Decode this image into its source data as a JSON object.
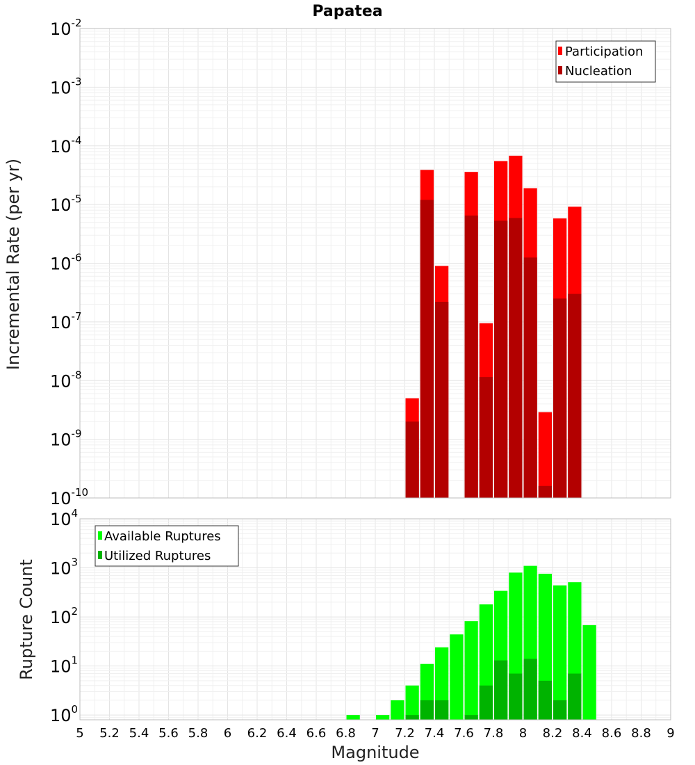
{
  "chart_data": [
    {
      "type": "bar",
      "id": "rates",
      "title": "Papatea",
      "xlabel": "",
      "ylabel": "Incremental Rate (per yr)",
      "yscale": "log",
      "ylim": [
        1e-10,
        0.01
      ],
      "xlim": [
        5,
        9
      ],
      "bar_width": 0.1,
      "y_tick_exponents": [
        -10,
        -9,
        -8,
        -7,
        -6,
        -5,
        -4,
        -3,
        -2
      ],
      "legend_position": "top-right",
      "series": [
        {
          "name": "Participation",
          "color": "#ff0000",
          "points": [
            {
              "x": 7.25,
              "y": 5e-09
            },
            {
              "x": 7.35,
              "y": 3.9e-05
            },
            {
              "x": 7.45,
              "y": 9e-07
            },
            {
              "x": 7.65,
              "y": 3.6e-05
            },
            {
              "x": 7.75,
              "y": 9.5e-08
            },
            {
              "x": 7.85,
              "y": 5.5e-05
            },
            {
              "x": 7.95,
              "y": 6.8e-05
            },
            {
              "x": 8.05,
              "y": 1.9e-05
            },
            {
              "x": 8.15,
              "y": 2.9e-09
            },
            {
              "x": 8.25,
              "y": 5.8e-06
            },
            {
              "x": 8.35,
              "y": 9.2e-06
            }
          ]
        },
        {
          "name": "Nucleation",
          "color": "#b30000",
          "points": [
            {
              "x": 7.25,
              "y": 2e-09
            },
            {
              "x": 7.35,
              "y": 1.2e-05
            },
            {
              "x": 7.45,
              "y": 2.2e-07
            },
            {
              "x": 7.65,
              "y": 6.5e-06
            },
            {
              "x": 7.75,
              "y": 1.15e-08
            },
            {
              "x": 7.85,
              "y": 5.3e-06
            },
            {
              "x": 7.95,
              "y": 5.9e-06
            },
            {
              "x": 8.05,
              "y": 1.25e-06
            },
            {
              "x": 8.15,
              "y": 1.6e-10
            },
            {
              "x": 8.25,
              "y": 2.5e-07
            },
            {
              "x": 8.35,
              "y": 3e-07
            }
          ]
        }
      ]
    },
    {
      "type": "bar",
      "id": "counts",
      "title": "",
      "xlabel": "Magnitude",
      "ylabel": "Rupture Count",
      "yscale": "log",
      "ylim": [
        0.8,
        10000
      ],
      "xlim": [
        5,
        9
      ],
      "bar_width": 0.1,
      "y_tick_exponents": [
        0,
        1,
        2,
        3,
        4
      ],
      "x_ticks": [
        5,
        5.2,
        5.4,
        5.6,
        5.8,
        6,
        6.2,
        6.4,
        6.6,
        6.8,
        7,
        7.2,
        7.4,
        7.6,
        7.8,
        8,
        8.2,
        8.4,
        8.6,
        8.8,
        9
      ],
      "legend_position": "top-left",
      "series": [
        {
          "name": "Available Ruptures",
          "color": "#00ff00",
          "points": [
            {
              "x": 6.85,
              "y": 1
            },
            {
              "x": 7.05,
              "y": 1
            },
            {
              "x": 7.15,
              "y": 2
            },
            {
              "x": 7.25,
              "y": 4
            },
            {
              "x": 7.35,
              "y": 11
            },
            {
              "x": 7.45,
              "y": 24
            },
            {
              "x": 7.55,
              "y": 44
            },
            {
              "x": 7.65,
              "y": 82
            },
            {
              "x": 7.75,
              "y": 180
            },
            {
              "x": 7.85,
              "y": 340
            },
            {
              "x": 7.95,
              "y": 800
            },
            {
              "x": 8.05,
              "y": 1100
            },
            {
              "x": 8.15,
              "y": 760
            },
            {
              "x": 8.25,
              "y": 440
            },
            {
              "x": 8.35,
              "y": 510
            },
            {
              "x": 8.45,
              "y": 68
            }
          ]
        },
        {
          "name": "Utilized Ruptures",
          "color": "#00b300",
          "points": [
            {
              "x": 7.25,
              "y": 1
            },
            {
              "x": 7.35,
              "y": 2
            },
            {
              "x": 7.45,
              "y": 2
            },
            {
              "x": 7.65,
              "y": 1
            },
            {
              "x": 7.75,
              "y": 4
            },
            {
              "x": 7.85,
              "y": 13
            },
            {
              "x": 7.95,
              "y": 7
            },
            {
              "x": 8.05,
              "y": 14
            },
            {
              "x": 8.15,
              "y": 5
            },
            {
              "x": 8.25,
              "y": 2
            },
            {
              "x": 8.35,
              "y": 7
            }
          ]
        }
      ]
    }
  ]
}
